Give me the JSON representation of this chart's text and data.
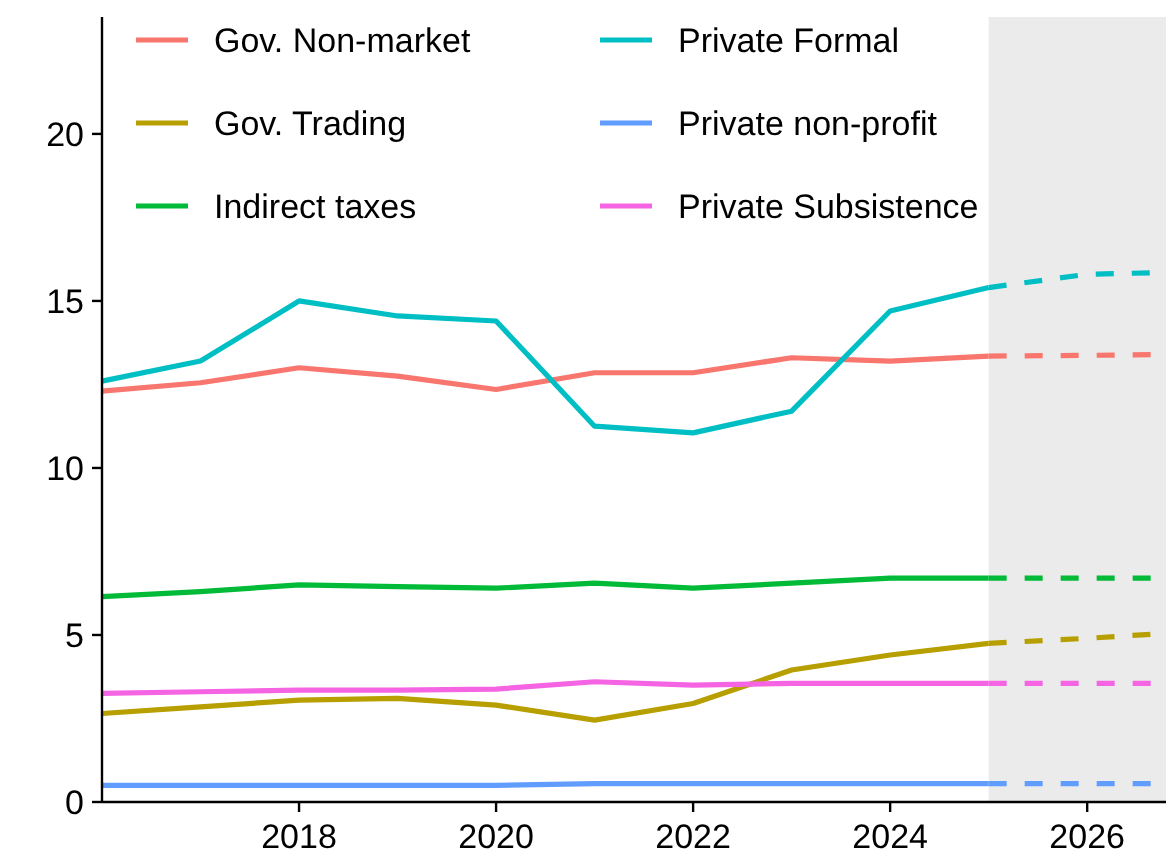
{
  "chart_data": {
    "type": "line",
    "xlim": [
      2016,
      2026.8
    ],
    "xticks": [
      2018,
      2020,
      2022,
      2024,
      2026
    ],
    "ylim": [
      0,
      23.5
    ],
    "yticks": [
      0,
      5,
      10,
      15,
      20
    ],
    "grid": false,
    "legend": "top left",
    "line_style": "solid",
    "marker": "none",
    "bands": [
      {
        "axis": "x",
        "from": 2025,
        "to": 2026.8,
        "color": "#ebebeb"
      }
    ],
    "series": [
      {
        "name": "Gov. Non-market",
        "color": "#f8766d",
        "x": [
          2016,
          2017,
          2018,
          2019,
          2020,
          2021,
          2022,
          2023,
          2024,
          2025
        ],
        "values": [
          12.3,
          12.55,
          13.0,
          12.75,
          12.35,
          12.85,
          12.85,
          13.3,
          13.2,
          13.35
        ]
      },
      {
        "name": "Gov. Trading",
        "color": "#b79f00",
        "x": [
          2016,
          2017,
          2018,
          2019,
          2020,
          2021,
          2022,
          2023,
          2024,
          2025
        ],
        "values": [
          2.65,
          2.85,
          3.05,
          3.1,
          2.9,
          2.45,
          2.95,
          3.95,
          4.4,
          4.75
        ]
      },
      {
        "name": "Indirect taxes",
        "color": "#00ba38",
        "x": [
          2016,
          2017,
          2018,
          2019,
          2020,
          2021,
          2022,
          2023,
          2024,
          2025
        ],
        "values": [
          6.15,
          6.3,
          6.5,
          6.45,
          6.4,
          6.55,
          6.4,
          6.55,
          6.7,
          6.7
        ]
      },
      {
        "name": "Private Formal",
        "color": "#00bfc4",
        "x": [
          2016,
          2017,
          2018,
          2019,
          2020,
          2021,
          2022,
          2023,
          2024,
          2025
        ],
        "values": [
          12.6,
          13.2,
          15.0,
          14.55,
          14.4,
          11.25,
          11.05,
          11.7,
          14.7,
          15.4
        ]
      },
      {
        "name": "Private non-profit",
        "color": "#619cff",
        "x": [
          2016,
          2017,
          2018,
          2019,
          2020,
          2021,
          2022,
          2023,
          2024,
          2025
        ],
        "values": [
          0.5,
          0.5,
          0.5,
          0.5,
          0.5,
          0.55,
          0.55,
          0.55,
          0.55,
          0.55
        ]
      },
      {
        "name": "Private Subsistence",
        "color": "#f564e3",
        "x": [
          2016,
          2017,
          2018,
          2019,
          2020,
          2021,
          2022,
          2023,
          2024,
          2025
        ],
        "values": [
          3.25,
          3.3,
          3.35,
          3.35,
          3.38,
          3.6,
          3.5,
          3.55,
          3.55,
          3.55
        ]
      },
      {
        "color": "#f8766d",
        "line_style": "dashed",
        "x": [
          2025,
          2026,
          2026.8
        ],
        "values": [
          13.35,
          13.37,
          13.4
        ]
      },
      {
        "color": "#b79f00",
        "line_style": "dashed",
        "x": [
          2025,
          2026,
          2026.8
        ],
        "values": [
          4.75,
          4.9,
          5.05
        ]
      },
      {
        "color": "#00ba38",
        "line_style": "dashed",
        "x": [
          2025,
          2026,
          2026.8
        ],
        "values": [
          6.7,
          6.7,
          6.7
        ]
      },
      {
        "color": "#00bfc4",
        "line_style": "dashed",
        "x": [
          2025,
          2026,
          2026.8
        ],
        "values": [
          15.4,
          15.8,
          15.85
        ]
      },
      {
        "color": "#619cff",
        "line_style": "dashed",
        "x": [
          2025,
          2026,
          2026.8
        ],
        "values": [
          0.55,
          0.55,
          0.55
        ]
      },
      {
        "color": "#f564e3",
        "line_style": "dashed",
        "x": [
          2025,
          2026,
          2026.8
        ],
        "values": [
          3.55,
          3.55,
          3.55
        ]
      }
    ]
  }
}
